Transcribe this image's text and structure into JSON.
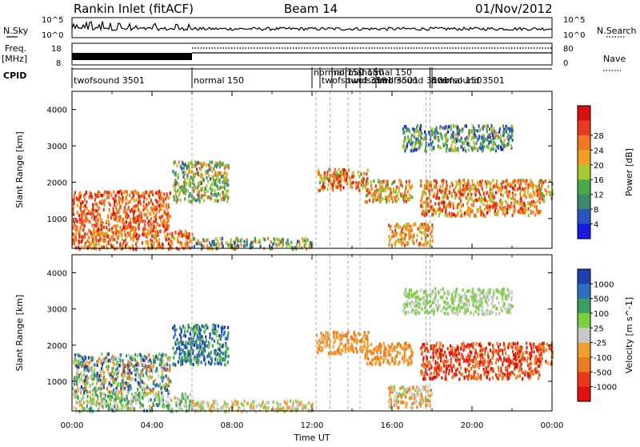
{
  "header": {
    "station": "Rankin Inlet (fitACF)",
    "beam": "Beam 14",
    "date": "01/Nov/2012"
  },
  "side_labels": {
    "nsky": "N.Sky",
    "nsearch": "N.Search",
    "freq": "Freq.",
    "freq_unit": "[MHz]",
    "nave": "Nave",
    "cpid": "CPID"
  },
  "top_axes": {
    "nsky_ticks": [
      "10^5",
      "10^0"
    ],
    "nsearch_ticks": [
      "10^5",
      "10^0"
    ],
    "freq_ticks": [
      "18",
      "8"
    ],
    "nave_ticks": [
      "80",
      "0"
    ]
  },
  "cpid_segments": [
    {
      "label": "twofsound 3501",
      "start_hr": 0.0,
      "end_hr": 6.0
    },
    {
      "label": "normal 150",
      "start_hr": 6.0,
      "end_hr": 12.0
    },
    {
      "label": "normal 150",
      "start_hr": 12.0,
      "end_hr": 12.4
    },
    {
      "label": "twofsound 3501",
      "start_hr": 12.4,
      "end_hr": 13.0
    },
    {
      "label": "normal 150",
      "start_hr": 13.0,
      "end_hr": 13.7
    },
    {
      "label": "twofsound 3501",
      "start_hr": 13.7,
      "end_hr": 14.4
    },
    {
      "label": "normal 150",
      "start_hr": 14.4,
      "end_hr": 15.2
    },
    {
      "label": "twofsound 3501",
      "start_hr": 15.2,
      "end_hr": 17.7
    },
    {
      "label": "normal 150",
      "start_hr": 17.9,
      "end_hr": 20.0
    },
    {
      "label": "twofsound 3501",
      "start_hr": 18.0,
      "end_hr": 24.0
    }
  ],
  "chart_data": [
    {
      "type": "heatmap",
      "name": "power",
      "ylabel": "Slant Range [km]",
      "xlabel": "Time UT",
      "xlim": [
        0,
        24
      ],
      "ylim": [
        180,
        4500
      ],
      "x_ticks": [
        "00:00",
        "04:00",
        "08:00",
        "12:00",
        "16:00",
        "20:00",
        "00:00"
      ],
      "y_ticks": [
        1000,
        2000,
        3000,
        4000
      ],
      "colorbar": {
        "label": "Power [dB]",
        "ticks": [
          4,
          8,
          12,
          16,
          20,
          24,
          28
        ],
        "colors": [
          "#1a1ae6",
          "#2a55c0",
          "#3c8a6e",
          "#49a84a",
          "#a6c832",
          "#f0a020",
          "#f07820",
          "#e83a1c",
          "#d81010"
        ]
      },
      "scatter_regions": [
        {
          "x": [
            0.0,
            4.9
          ],
          "y": [
            700,
            1800
          ],
          "value_range": [
            20,
            30
          ]
        },
        {
          "x": [
            0.0,
            6.0
          ],
          "y": [
            200,
            700
          ],
          "value_range": [
            18,
            30
          ]
        },
        {
          "x": [
            5.0,
            7.8
          ],
          "y": [
            1500,
            2600
          ],
          "value_range": [
            8,
            24
          ]
        },
        {
          "x": [
            6.0,
            12.0
          ],
          "y": [
            200,
            500
          ],
          "value_range": [
            6,
            24
          ]
        },
        {
          "x": [
            12.2,
            14.8
          ],
          "y": [
            1800,
            2400
          ],
          "value_range": [
            14,
            30
          ]
        },
        {
          "x": [
            14.6,
            17.0
          ],
          "y": [
            1500,
            2100
          ],
          "value_range": [
            14,
            28
          ]
        },
        {
          "x": [
            15.8,
            18.0
          ],
          "y": [
            300,
            900
          ],
          "value_range": [
            16,
            28
          ]
        },
        {
          "x": [
            17.4,
            23.4
          ],
          "y": [
            1100,
            2100
          ],
          "value_range": [
            16,
            30
          ]
        },
        {
          "x": [
            16.5,
            22.0
          ],
          "y": [
            2900,
            3600
          ],
          "value_range": [
            4,
            20
          ]
        },
        {
          "x": [
            23.3,
            24.0
          ],
          "y": [
            1500,
            2100
          ],
          "value_range": [
            12,
            28
          ]
        }
      ],
      "scan_lines_hr": [
        6.0,
        12.2,
        12.9,
        13.8,
        14.4,
        17.7,
        17.9
      ]
    },
    {
      "type": "heatmap",
      "name": "velocity",
      "ylabel": "Slant Range [km]",
      "xlabel": "Time UT",
      "xlim": [
        0,
        24
      ],
      "ylim": [
        180,
        4500
      ],
      "x_ticks": [
        "00:00",
        "04:00",
        "08:00",
        "12:00",
        "16:00",
        "20:00",
        "00:00"
      ],
      "y_ticks": [
        1000,
        2000,
        3000,
        4000
      ],
      "colorbar": {
        "label": "Velocity [m s^-1]",
        "ticks": [
          1000,
          500,
          100,
          25,
          -25,
          -100,
          -500,
          -1000
        ],
        "colors": [
          "#1f3fb0",
          "#2f6fbf",
          "#3aa060",
          "#7bd040",
          "#c8c8c8",
          "#f0a030",
          "#f07a20",
          "#e83a1a",
          "#e01010"
        ]
      },
      "scatter_regions": [
        {
          "x": [
            0.0,
            4.9
          ],
          "y": [
            700,
            1800
          ],
          "value_range": [
            -500,
            1000
          ]
        },
        {
          "x": [
            0.0,
            6.0
          ],
          "y": [
            200,
            700
          ],
          "value_range": [
            -200,
            600
          ]
        },
        {
          "x": [
            5.0,
            7.8
          ],
          "y": [
            1500,
            2600
          ],
          "value_range": [
            200,
            1000
          ]
        },
        {
          "x": [
            6.0,
            12.0
          ],
          "y": [
            200,
            500
          ],
          "value_range": [
            -300,
            300
          ]
        },
        {
          "x": [
            12.2,
            14.8
          ],
          "y": [
            1800,
            2400
          ],
          "value_range": [
            -500,
            -100
          ]
        },
        {
          "x": [
            14.6,
            17.0
          ],
          "y": [
            1500,
            2100
          ],
          "value_range": [
            -500,
            -100
          ]
        },
        {
          "x": [
            15.8,
            18.0
          ],
          "y": [
            300,
            900
          ],
          "value_range": [
            -500,
            200
          ]
        },
        {
          "x": [
            17.4,
            23.4
          ],
          "y": [
            1100,
            2100
          ],
          "value_range": [
            -1000,
            -300
          ]
        },
        {
          "x": [
            16.5,
            22.0
          ],
          "y": [
            2900,
            3600
          ],
          "value_range": [
            -50,
            300
          ]
        },
        {
          "x": [
            23.3,
            24.0
          ],
          "y": [
            1500,
            2100
          ],
          "value_range": [
            -800,
            -200
          ]
        }
      ],
      "scan_lines_hr": [
        6.0,
        12.2,
        12.9,
        13.8,
        14.4,
        17.7,
        17.9
      ]
    }
  ]
}
